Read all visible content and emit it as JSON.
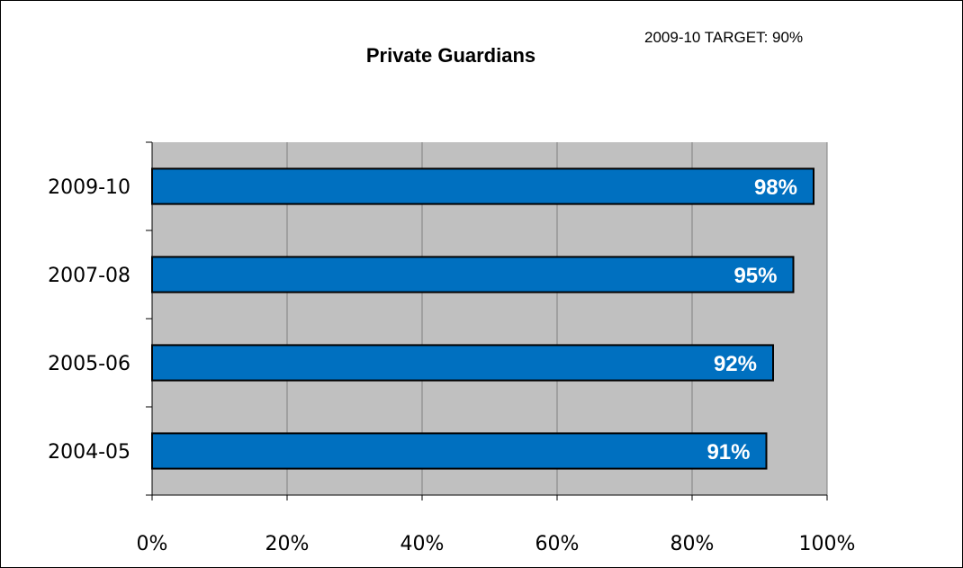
{
  "chart_data": {
    "type": "bar",
    "orientation": "horizontal",
    "title": "Private Guardians",
    "annotation": "2009-10  TARGET: 90%",
    "categories": [
      "2009-10",
      "2007-08",
      "2005-06",
      "2004-05"
    ],
    "values": [
      98,
      95,
      92,
      91
    ],
    "data_labels": [
      "98%",
      "95%",
      "92%",
      "91%"
    ],
    "xlim": [
      0,
      100
    ],
    "xticks": [
      0,
      20,
      40,
      60,
      80,
      100
    ],
    "xtick_labels": [
      "0%",
      "20%",
      "40%",
      "60%",
      "80%",
      "100%"
    ],
    "xlabel": "",
    "ylabel": "",
    "grid": true,
    "legend": "none",
    "colors": {
      "bar": "#0070c0",
      "plot_background": "#c0c0c0",
      "gridline": "#808080",
      "border": "#000000",
      "label": "#ffffff"
    }
  }
}
